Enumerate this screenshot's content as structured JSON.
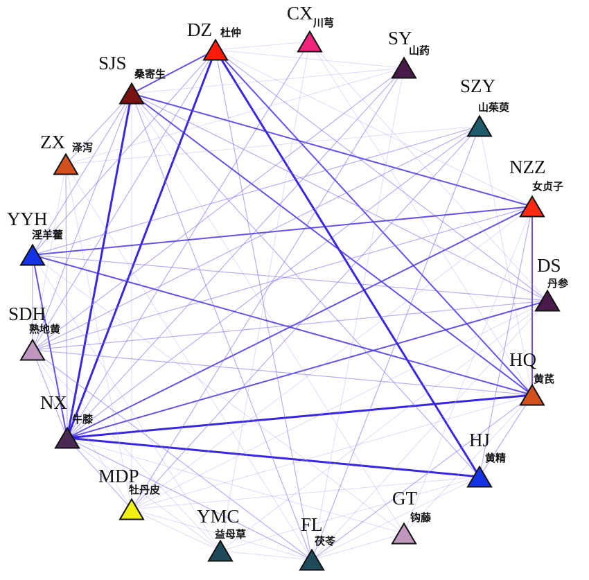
{
  "nodes": [
    {
      "id": "DZ",
      "code": "DZ",
      "name": "杜仲",
      "color": "#FF1A0A"
    },
    {
      "id": "CX",
      "code": "CX",
      "name": "川芎",
      "color": "#F0247A"
    },
    {
      "id": "SY",
      "code": "SY",
      "name": "山药",
      "color": "#4A1A4A"
    },
    {
      "id": "SJS",
      "code": "SJS",
      "name": "桑寄生",
      "color": "#7A1414"
    },
    {
      "id": "SZY",
      "code": "SZY",
      "name": "山茱萸",
      "color": "#1E5A6A"
    },
    {
      "id": "ZX",
      "code": "ZX",
      "name": "泽泻",
      "color": "#D2501E"
    },
    {
      "id": "NZZ",
      "code": "NZZ",
      "name": "女贞子",
      "color": "#FF2A14"
    },
    {
      "id": "YYH",
      "code": "YYH",
      "name": "淫羊藿",
      "color": "#1432E6"
    },
    {
      "id": "DS",
      "code": "DS",
      "name": "丹参",
      "color": "#4A1A4A"
    },
    {
      "id": "SDH",
      "code": "SDH",
      "name": "熟地黄",
      "color": "#BE96BE"
    },
    {
      "id": "HQ",
      "code": "HQ",
      "name": "黄芪",
      "color": "#D2501E"
    },
    {
      "id": "NX",
      "code": "NX",
      "name": "牛膝",
      "color": "#4A2A52"
    },
    {
      "id": "HJ",
      "code": "HJ",
      "name": "黄精",
      "color": "#1432E6"
    },
    {
      "id": "MDP",
      "code": "MDP",
      "name": "牡丹皮",
      "color": "#F0F014"
    },
    {
      "id": "GT",
      "code": "GT",
      "name": "钩藤",
      "color": "#BE96BE"
    },
    {
      "id": "YMC",
      "code": "YMC",
      "name": "益母草",
      "color": "#1E4A5A"
    },
    {
      "id": "FL",
      "code": "FL",
      "name": "茯苓",
      "color": "#1E4A5A"
    }
  ],
  "edges": [
    {
      "source": "NX",
      "target": "DZ",
      "strength": 3
    },
    {
      "source": "NX",
      "target": "SJS",
      "strength": 3
    },
    {
      "source": "NX",
      "target": "HQ",
      "strength": 3
    },
    {
      "source": "NX",
      "target": "HJ",
      "strength": 3
    },
    {
      "source": "NX",
      "target": "DS",
      "strength": 2
    },
    {
      "source": "NX",
      "target": "NZZ",
      "strength": 2
    },
    {
      "source": "NX",
      "target": "SZY",
      "strength": 1
    },
    {
      "source": "NX",
      "target": "YYH",
      "strength": 2
    },
    {
      "source": "NX",
      "target": "SDH",
      "strength": 1
    },
    {
      "source": "NX",
      "target": "MDP",
      "strength": 1
    },
    {
      "source": "NX",
      "target": "FL",
      "strength": 1
    },
    {
      "source": "NX",
      "target": "YMC",
      "strength": 0
    },
    {
      "source": "NX",
      "target": "CX",
      "strength": 1
    },
    {
      "source": "NX",
      "target": "SY",
      "strength": 1
    },
    {
      "source": "NX",
      "target": "ZX",
      "strength": 1
    },
    {
      "source": "NX",
      "target": "GT",
      "strength": 0
    },
    {
      "source": "DZ",
      "target": "SJS",
      "strength": 2
    },
    {
      "source": "DZ",
      "target": "HJ",
      "strength": 3
    },
    {
      "source": "DZ",
      "target": "HQ",
      "strength": 2
    },
    {
      "source": "DZ",
      "target": "YYH",
      "strength": 1
    },
    {
      "source": "DZ",
      "target": "CX",
      "strength": 0
    },
    {
      "source": "DZ",
      "target": "NZZ",
      "strength": 0
    },
    {
      "source": "DZ",
      "target": "SDH",
      "strength": 1
    },
    {
      "source": "DZ",
      "target": "FL",
      "strength": 1
    },
    {
      "source": "DZ",
      "target": "DS",
      "strength": 1
    },
    {
      "source": "DZ",
      "target": "SY",
      "strength": 0
    },
    {
      "source": "SJS",
      "target": "NZZ",
      "strength": 2
    },
    {
      "source": "SJS",
      "target": "HQ",
      "strength": 2
    },
    {
      "source": "SJS",
      "target": "DS",
      "strength": 1
    },
    {
      "source": "SJS",
      "target": "HJ",
      "strength": 1
    },
    {
      "source": "SJS",
      "target": "ZX",
      "strength": 1
    },
    {
      "source": "SJS",
      "target": "YYH",
      "strength": 1
    },
    {
      "source": "SJS",
      "target": "SDH",
      "strength": 1
    },
    {
      "source": "SJS",
      "target": "FL",
      "strength": 1
    },
    {
      "source": "SJS",
      "target": "MDP",
      "strength": 0
    },
    {
      "source": "SJS",
      "target": "SY",
      "strength": 0
    },
    {
      "source": "SJS",
      "target": "GT",
      "strength": 0
    },
    {
      "source": "NZZ",
      "target": "HQ",
      "strength": 2
    },
    {
      "source": "NZZ",
      "target": "YYH",
      "strength": 2
    },
    {
      "source": "NZZ",
      "target": "SDH",
      "strength": 1
    },
    {
      "source": "NZZ",
      "target": "HJ",
      "strength": 1
    },
    {
      "source": "NZZ",
      "target": "MDP",
      "strength": 0
    },
    {
      "source": "NZZ",
      "target": "GT",
      "strength": 0
    },
    {
      "source": "YYH",
      "target": "HQ",
      "strength": 2
    },
    {
      "source": "YYH",
      "target": "SDH",
      "strength": 1
    },
    {
      "source": "YYH",
      "target": "SZY",
      "strength": 1
    },
    {
      "source": "YYH",
      "target": "DS",
      "strength": 1
    },
    {
      "source": "YYH",
      "target": "YMC",
      "strength": 0
    },
    {
      "source": "YYH",
      "target": "GT",
      "strength": 0
    },
    {
      "source": "SZY",
      "target": "FL",
      "strength": 1
    },
    {
      "source": "SZY",
      "target": "SDH",
      "strength": 1
    },
    {
      "source": "SZY",
      "target": "MDP",
      "strength": 1
    },
    {
      "source": "SZY",
      "target": "ZX",
      "strength": 0
    },
    {
      "source": "SZY",
      "target": "HQ",
      "strength": 0
    },
    {
      "source": "SY",
      "target": "SDH",
      "strength": 1
    },
    {
      "source": "SY",
      "target": "MDP",
      "strength": 1
    },
    {
      "source": "SY",
      "target": "ZX",
      "strength": 0
    },
    {
      "source": "SY",
      "target": "FL",
      "strength": 0
    },
    {
      "source": "CX",
      "target": "DS",
      "strength": 0
    },
    {
      "source": "CX",
      "target": "YMC",
      "strength": 0
    },
    {
      "source": "CX",
      "target": "HQ",
      "strength": 0
    },
    {
      "source": "DS",
      "target": "SDH",
      "strength": 1
    },
    {
      "source": "DS",
      "target": "FL",
      "strength": 0
    },
    {
      "source": "DS",
      "target": "MDP",
      "strength": 0
    },
    {
      "source": "DS",
      "target": "YMC",
      "strength": 0
    },
    {
      "source": "SDH",
      "target": "FL",
      "strength": 1
    },
    {
      "source": "SDH",
      "target": "HQ",
      "strength": 1
    },
    {
      "source": "SDH",
      "target": "MDP",
      "strength": 0
    },
    {
      "source": "SDH",
      "target": "YMC",
      "strength": 0
    },
    {
      "source": "ZX",
      "target": "FL",
      "strength": 0
    },
    {
      "source": "ZX",
      "target": "MDP",
      "strength": 0
    },
    {
      "source": "ZX",
      "target": "SDH",
      "strength": 0
    },
    {
      "source": "HQ",
      "target": "FL",
      "strength": 1
    },
    {
      "source": "HQ",
      "target": "HJ",
      "strength": 1
    },
    {
      "source": "HQ",
      "target": "GT",
      "strength": 0
    },
    {
      "source": "HQ",
      "target": "MDP",
      "strength": 0
    },
    {
      "source": "HJ",
      "target": "FL",
      "strength": 0
    },
    {
      "source": "HJ",
      "target": "YMC",
      "strength": 0
    },
    {
      "source": "HJ",
      "target": "MDP",
      "strength": 0
    },
    {
      "source": "GT",
      "target": "FL",
      "strength": 0
    },
    {
      "source": "MDP",
      "target": "FL",
      "strength": 0
    },
    {
      "source": "MDP",
      "target": "YMC",
      "strength": 0
    },
    {
      "source": "YMC",
      "target": "FL",
      "strength": 0
    }
  ]
}
